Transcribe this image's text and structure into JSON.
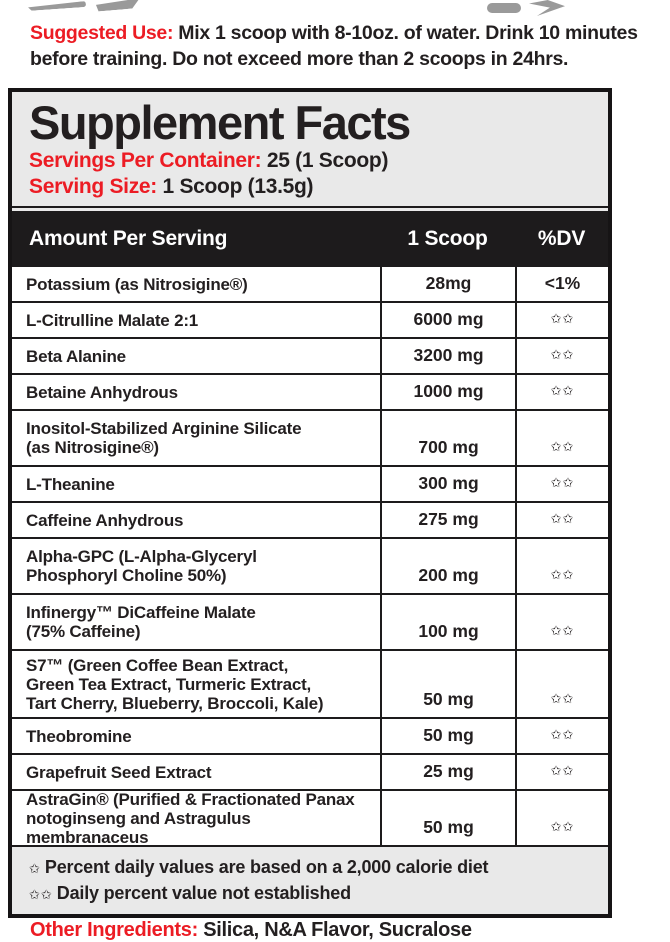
{
  "colors": {
    "red": "#EC1C24",
    "ink": "#231F20",
    "panel_bg": "#E9E9E9",
    "bar_bg": "#1D1B1C",
    "logo_gray": "#9A9A9A"
  },
  "suggested_use": {
    "label": "Suggested Use:",
    "line1": "Mix 1 scoop with 8-10oz. of water. Drink 10 minutes",
    "line2": "before training. Do not exceed more than 2 scoops in 24hrs."
  },
  "panel": {
    "title": "Supplement Facts",
    "servings_label": "Servings Per Container:",
    "servings_value": "25 (1 Scoop)",
    "serving_size_label": "Serving Size:",
    "serving_size_value": "1 Scoop (13.5g)",
    "columns": {
      "name": "Amount Per Serving",
      "amount": "1 Scoop",
      "dv": "%DV"
    },
    "rows": [
      {
        "name": "Potassium (as Nitrosigine®)",
        "amount": "28mg",
        "dv": "<1%"
      },
      {
        "name": "L-Citrulline Malate 2:1",
        "amount": "6000 mg",
        "dv": "✩✩"
      },
      {
        "name": "Beta Alanine",
        "amount": "3200 mg",
        "dv": "✩✩"
      },
      {
        "name": "Betaine Anhydrous",
        "amount": "1000 mg",
        "dv": "✩✩"
      },
      {
        "name": "Inositol-Stabilized Arginine Silicate\n(as Nitrosigine®)",
        "amount": "700 mg",
        "dv": "✩✩"
      },
      {
        "name": "L-Theanine",
        "amount": "300 mg",
        "dv": "✩✩"
      },
      {
        "name": "Caffeine Anhydrous",
        "amount": "275 mg",
        "dv": "✩✩"
      },
      {
        "name": "Alpha-GPC (L-Alpha-Glyceryl\nPhosphoryl Choline 50%)",
        "amount": "200 mg",
        "dv": "✩✩"
      },
      {
        "name": "Infinergy™ DiCaffeine Malate\n(75% Caffeine)",
        "amount": "100 mg",
        "dv": "✩✩"
      },
      {
        "name": "S7™ (Green Coffee Bean Extract,\nGreen Tea Extract, Turmeric Extract,\nTart Cherry, Blueberry, Broccoli, Kale)",
        "amount": "50 mg",
        "dv": "✩✩"
      },
      {
        "name": "Theobromine",
        "amount": "50 mg",
        "dv": "✩✩"
      },
      {
        "name": "Grapefruit Seed Extract",
        "amount": "25 mg",
        "dv": "✩✩"
      },
      {
        "name": "AstraGin® (Purified & Fractionated Panax\nnotoginseng and Astragulus membranaceus",
        "amount": "50 mg",
        "dv": "✩✩"
      }
    ],
    "footnotes": [
      {
        "sym": "✩",
        "text": "Percent daily values are based on a 2,000 calorie diet"
      },
      {
        "sym": "✩✩",
        "text": "Daily percent value not established"
      }
    ]
  },
  "other_ingredients": {
    "label": "Other Ingredients:",
    "value": "Silica, N&A Flavor, Sucralose"
  }
}
